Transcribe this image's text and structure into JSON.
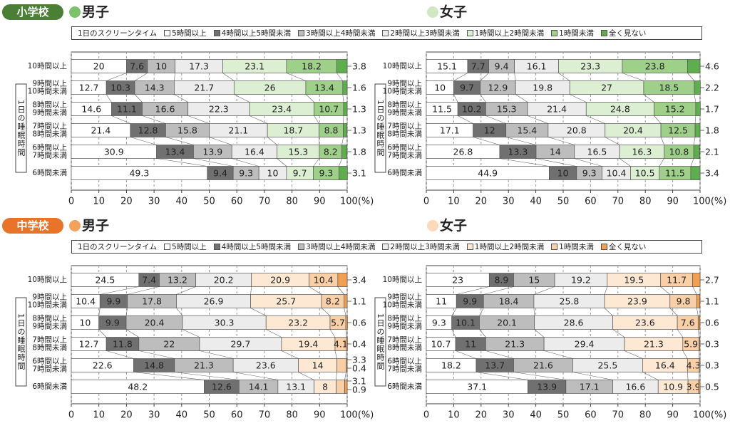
{
  "chart_data": [
    {
      "type": "stacked-bar-100",
      "section": "小学校",
      "section_color": "#4a7f35",
      "title": "男子",
      "marker_color": "#7cc26a",
      "legend_title": "1日のスクリーンタイム",
      "ylabel": "1日の睡眠時間",
      "categories": [
        [
          "10時間以上"
        ],
        [
          "9時間以上",
          "10時間未満"
        ],
        [
          "8時間以上",
          "9時間未満"
        ],
        [
          "7時間以上",
          "8時間未満"
        ],
        [
          "6時間以上",
          "7時間未満"
        ],
        [
          "6時間未満"
        ]
      ],
      "xlim": [
        0,
        100
      ],
      "xticks": [
        0,
        10,
        20,
        30,
        40,
        50,
        60,
        70,
        80,
        90,
        {
          "value": 100,
          "label": "100(%)"
        }
      ],
      "grid": true,
      "series": [
        {
          "name": "5時間以上",
          "color": "#ffffff",
          "values": [
            20.0,
            12.7,
            14.6,
            21.4,
            30.9,
            49.3
          ]
        },
        {
          "name": "4時間以上5時間未満",
          "color": "#707070",
          "values": [
            7.6,
            10.3,
            11.1,
            12.8,
            13.4,
            9.4
          ]
        },
        {
          "name": "3時間以上4時間未満",
          "color": "#bdbdbd",
          "values": [
            10.0,
            14.3,
            16.6,
            15.8,
            13.9,
            9.3
          ]
        },
        {
          "name": "2時間以上3時間未満",
          "color": "#ececec",
          "values": [
            17.3,
            21.7,
            22.3,
            21.1,
            16.4,
            10.0
          ]
        },
        {
          "name": "1時間以上2時間未満",
          "color": "#dcefd2",
          "values": [
            23.1,
            26.0,
            23.4,
            18.7,
            15.3,
            9.7
          ]
        },
        {
          "name": "1時間未満",
          "color": "#9fd08a",
          "values": [
            18.2,
            13.4,
            10.7,
            8.8,
            8.2,
            9.3
          ]
        },
        {
          "name": "全く見ない",
          "color": "#5fae4e",
          "values": [
            3.8,
            1.6,
            1.3,
            1.3,
            1.8,
            3.1
          ]
        }
      ]
    },
    {
      "type": "stacked-bar-100",
      "title": "女子",
      "marker_color": "#cfe8c4",
      "ylabel": "1日の睡眠時間",
      "categories": [
        [
          "10時間以上"
        ],
        [
          "9時間以上",
          "10時間未満"
        ],
        [
          "8時間以上",
          "9時間未満"
        ],
        [
          "7時間以上",
          "8時間未満"
        ],
        [
          "6時間以上",
          "7時間未満"
        ],
        [
          "6時間未満"
        ]
      ],
      "xlim": [
        0,
        100
      ],
      "xticks": [
        0,
        10,
        20,
        30,
        40,
        50,
        60,
        70,
        80,
        90,
        {
          "value": 100,
          "label": "100(%)"
        }
      ],
      "grid": true,
      "series": [
        {
          "color": "#ffffff",
          "values": [
            15.1,
            10.0,
            11.5,
            17.1,
            26.8,
            44.9
          ]
        },
        {
          "color": "#707070",
          "values": [
            7.7,
            9.7,
            10.2,
            12.0,
            13.3,
            10.0
          ]
        },
        {
          "color": "#bdbdbd",
          "values": [
            9.4,
            12.9,
            15.3,
            15.4,
            14.0,
            9.3
          ]
        },
        {
          "color": "#ececec",
          "values": [
            16.1,
            19.8,
            21.4,
            20.8,
            16.5,
            10.4
          ]
        },
        {
          "color": "#dcefd2",
          "values": [
            23.3,
            27.0,
            24.8,
            20.4,
            16.3,
            10.5
          ]
        },
        {
          "color": "#9fd08a",
          "values": [
            23.8,
            18.5,
            15.2,
            12.5,
            10.8,
            11.5
          ]
        },
        {
          "color": "#5fae4e",
          "values": [
            4.6,
            2.2,
            1.7,
            1.8,
            2.1,
            3.4
          ]
        }
      ]
    },
    {
      "type": "stacked-bar-100",
      "section": "中学校",
      "section_color": "#e8742a",
      "title": "男子",
      "marker_color": "#f4a259",
      "legend_title": "1日のスクリーンタイム",
      "ylabel": "1日の睡眠時間",
      "categories": [
        [
          "10時間以上"
        ],
        [
          "9時間以上",
          "10時間未満"
        ],
        [
          "8時間以上",
          "9時間未満"
        ],
        [
          "7時間以上",
          "8時間未満"
        ],
        [
          "6時間以上",
          "7時間未満"
        ],
        [
          "6時間未満"
        ]
      ],
      "xlim": [
        0,
        100
      ],
      "xticks": [
        0,
        10,
        20,
        30,
        40,
        50,
        60,
        70,
        80,
        90,
        {
          "value": 100,
          "label": "100(%)"
        }
      ],
      "grid": true,
      "series": [
        {
          "name": "5時間以上",
          "color": "#ffffff",
          "values": [
            24.5,
            10.4,
            10.0,
            12.7,
            22.6,
            48.2
          ]
        },
        {
          "name": "4時間以上5時間未満",
          "color": "#707070",
          "values": [
            7.4,
            9.9,
            9.9,
            11.8,
            14.8,
            12.6
          ]
        },
        {
          "name": "3時間以上4時間未満",
          "color": "#bdbdbd",
          "values": [
            13.2,
            17.8,
            20.4,
            22.0,
            21.3,
            14.1
          ]
        },
        {
          "name": "2時間以上3時間未満",
          "color": "#ececec",
          "values": [
            20.2,
            26.9,
            30.3,
            29.7,
            23.6,
            13.1
          ]
        },
        {
          "name": "1時間以上2時間未満",
          "color": "#fde8d4",
          "values": [
            20.9,
            25.7,
            23.2,
            19.4,
            14.0,
            8.0
          ]
        },
        {
          "name": "1時間未満",
          "color": "#f9cfa7",
          "values": [
            10.4,
            8.2,
            5.7,
            4.1,
            3.3,
            3.1
          ]
        },
        {
          "name": "全く見ない",
          "color": "#f0a050",
          "values": [
            3.4,
            1.1,
            0.6,
            0.4,
            0.4,
            0.9
          ]
        }
      ]
    },
    {
      "type": "stacked-bar-100",
      "title": "女子",
      "marker_color": "#fcd9b8",
      "ylabel": "1日の睡眠時間",
      "categories": [
        [
          "10時間以上"
        ],
        [
          "9時間以上",
          "10時間未満"
        ],
        [
          "8時間以上",
          "9時間未満"
        ],
        [
          "7時間以上",
          "8時間未満"
        ],
        [
          "6時間以上",
          "7時間未満"
        ],
        [
          "6時間未満"
        ]
      ],
      "xlim": [
        0,
        100
      ],
      "xticks": [
        0,
        10,
        20,
        30,
        40,
        50,
        60,
        70,
        80,
        90,
        {
          "value": 100,
          "label": "100(%)"
        }
      ],
      "grid": true,
      "series": [
        {
          "color": "#ffffff",
          "values": [
            23.0,
            11.0,
            9.3,
            10.7,
            18.2,
            37.1
          ]
        },
        {
          "color": "#707070",
          "values": [
            8.9,
            9.9,
            10.1,
            11.0,
            13.7,
            13.9
          ]
        },
        {
          "color": "#bdbdbd",
          "values": [
            15.0,
            18.4,
            20.1,
            21.3,
            21.6,
            17.1
          ]
        },
        {
          "color": "#ececec",
          "values": [
            19.2,
            25.8,
            28.6,
            29.4,
            25.5,
            16.6
          ]
        },
        {
          "color": "#fde8d4",
          "values": [
            19.5,
            23.9,
            23.6,
            21.3,
            16.4,
            10.9
          ]
        },
        {
          "color": "#f9cfa7",
          "values": [
            11.7,
            9.8,
            7.6,
            5.9,
            4.3,
            3.9
          ]
        },
        {
          "color": "#f0a050",
          "values": [
            2.7,
            1.1,
            0.6,
            0.3,
            0.3,
            0.5
          ]
        }
      ]
    }
  ]
}
